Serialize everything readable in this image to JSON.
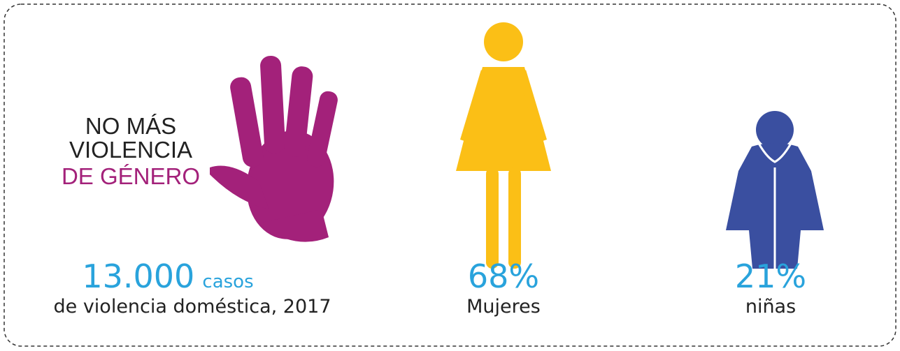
{
  "heading": {
    "line1": "NO MÁS",
    "line2": "VIOLENCIA",
    "line3": "DE GÉNERO"
  },
  "stats": [
    {
      "figure": "13.000",
      "unit": "casos",
      "label": "de violencia doméstica, 2017"
    },
    {
      "figure": "68%",
      "label": "Mujeres"
    },
    {
      "figure": "21%",
      "label": "niñas"
    }
  ]
}
